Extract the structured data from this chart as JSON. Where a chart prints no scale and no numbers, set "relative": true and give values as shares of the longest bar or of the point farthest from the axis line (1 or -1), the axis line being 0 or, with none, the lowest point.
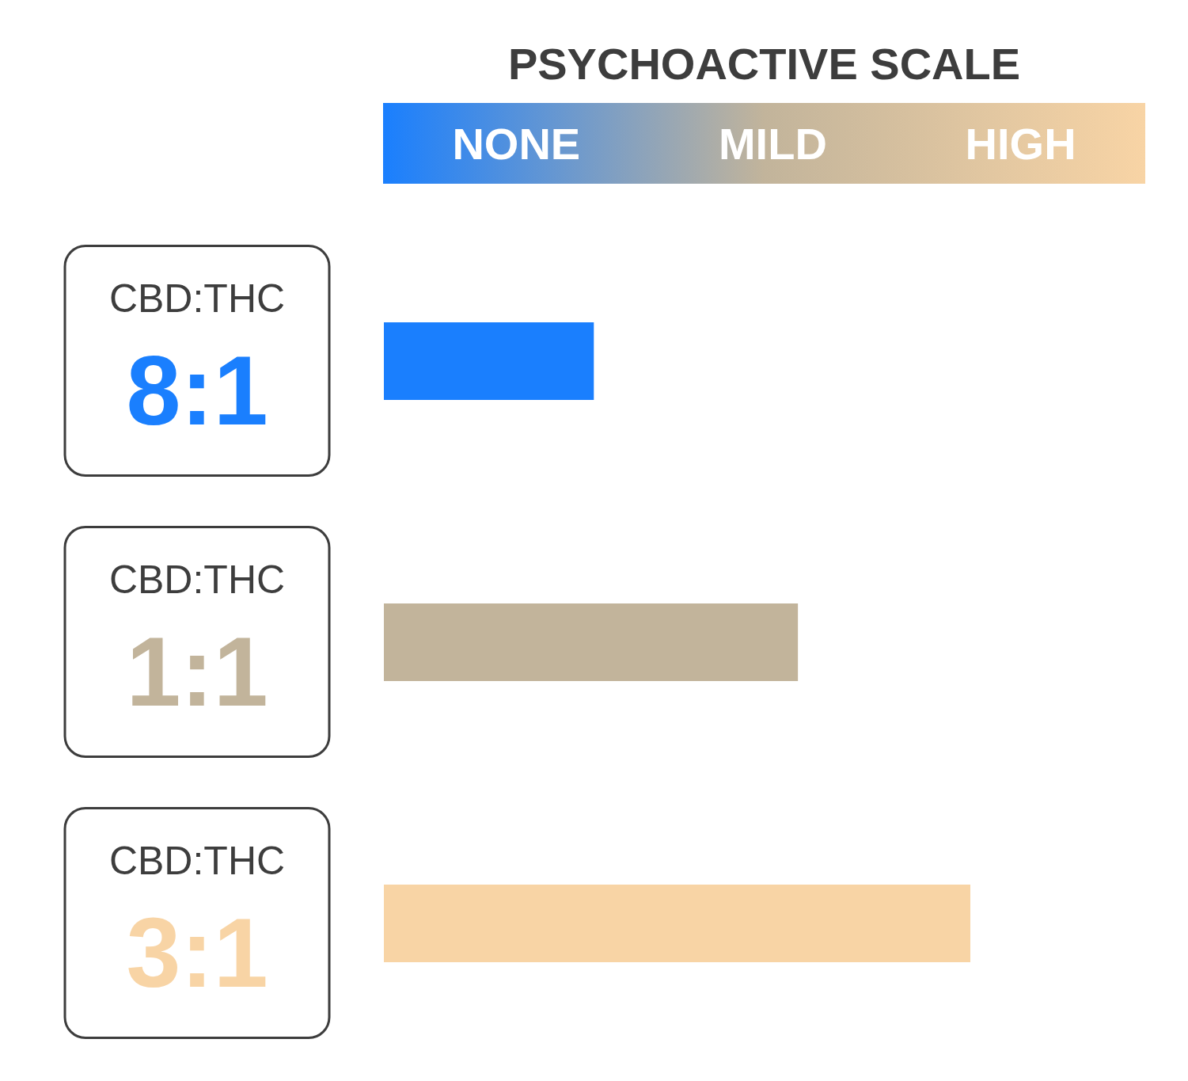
{
  "chart_data": {
    "type": "bar",
    "orientation": "horizontal",
    "relative": true,
    "title": "PSYCHOACTIVE SCALE",
    "annotations": [
      "NONE",
      "MILD",
      "HIGH"
    ],
    "categories": [
      "CBD:THC 8:1",
      "CBD:THC 1:1",
      "CBD:THC 3:1"
    ],
    "values": [
      0.358,
      0.706,
      1
    ],
    "colors": [
      "#1a7ffe",
      "#c2b49b",
      "#f8d4a5"
    ]
  }
}
